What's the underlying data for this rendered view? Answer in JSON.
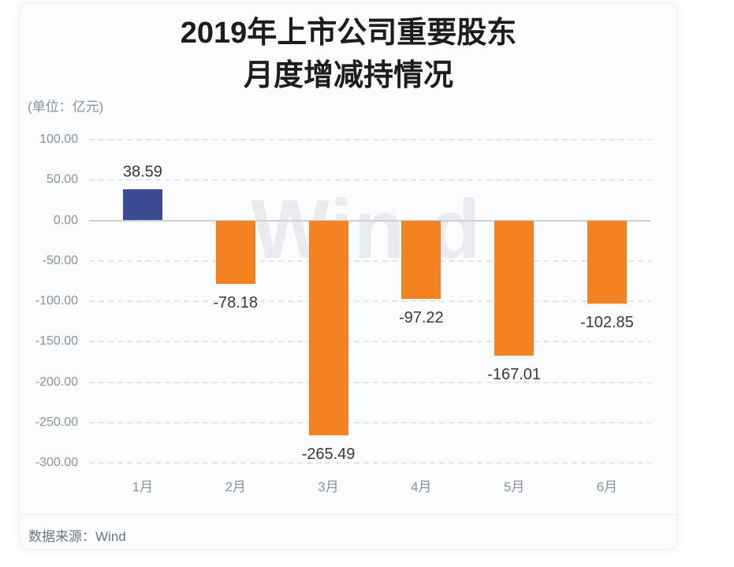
{
  "chart_data": {
    "type": "bar",
    "title_lines": [
      "2019年上市公司重要股东",
      "月度增减持情况"
    ],
    "unit_label": "(单位：亿元)",
    "categories": [
      "1月",
      "2月",
      "3月",
      "4月",
      "5月",
      "6月"
    ],
    "values": [
      38.59,
      -78.18,
      -265.49,
      -97.22,
      -167.01,
      -102.85
    ],
    "value_labels": [
      "38.59",
      "-78.18",
      "-265.49",
      "-97.22",
      "-167.01",
      "-102.85"
    ],
    "y_ticks": [
      100,
      50,
      0,
      -50,
      -100,
      -150,
      -200,
      -250,
      -300
    ],
    "y_tick_labels": [
      "100.00",
      "50.00",
      "0.00",
      "-50.00",
      "-100.00",
      "-150.00",
      "-200.00",
      "-250.00",
      "-300.00"
    ],
    "ylim": [
      -300,
      100
    ],
    "xlabel": "",
    "ylabel": "亿元",
    "grid": "horizontal-dashed",
    "legend": "none",
    "colors": {
      "positive": "#3c4b94",
      "negative": "#f58220"
    }
  },
  "watermark": {
    "text": "Win.d"
  },
  "footer": {
    "source_label": "数据来源：Wind"
  }
}
